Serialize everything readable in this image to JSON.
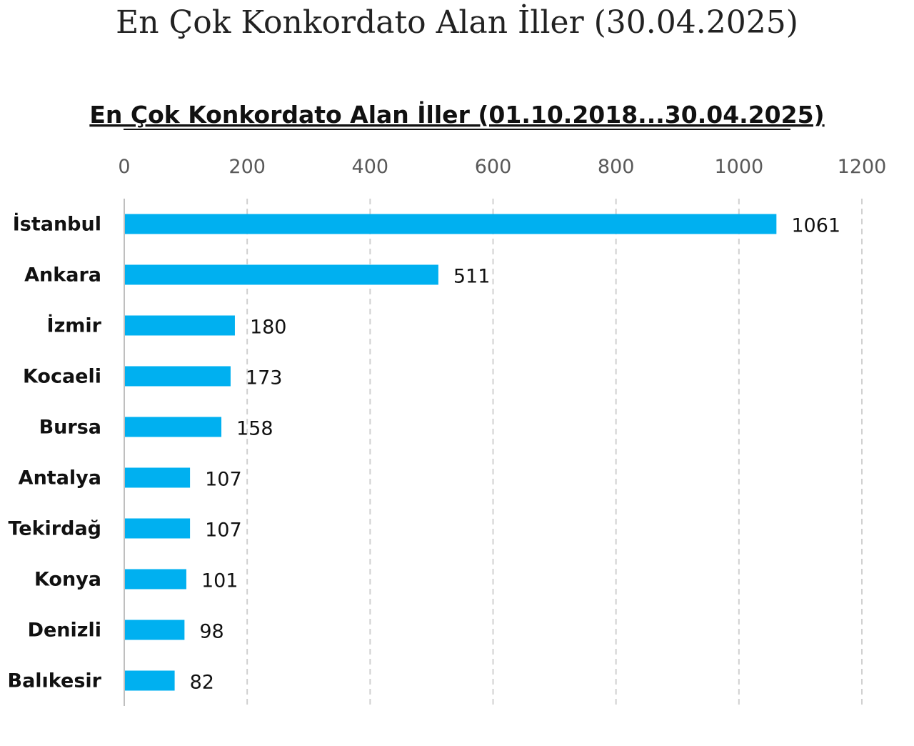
{
  "page": {
    "title": "En Çok Konkordato Alan İller (30.04.2025)"
  },
  "chart_data": {
    "type": "bar",
    "orientation": "horizontal",
    "title": "En Çok Konkordato Alan İller (01.10.2018...30.04.2025)",
    "categories": [
      "İstanbul",
      "Ankara",
      "İzmir",
      "Kocaeli",
      "Bursa",
      "Antalya",
      "Tekirdağ",
      "Konya",
      "Denizli",
      "Balıkesir"
    ],
    "values": [
      1061,
      511,
      180,
      173,
      158,
      107,
      107,
      101,
      98,
      82
    ],
    "xlim": [
      0,
      1200
    ],
    "xticks": [
      "0",
      "200",
      "400",
      "600",
      "800",
      "1000",
      "1200"
    ],
    "xaxis_position": "top",
    "grid": true,
    "data_labels": true,
    "bar_color": "#00B0F0"
  }
}
